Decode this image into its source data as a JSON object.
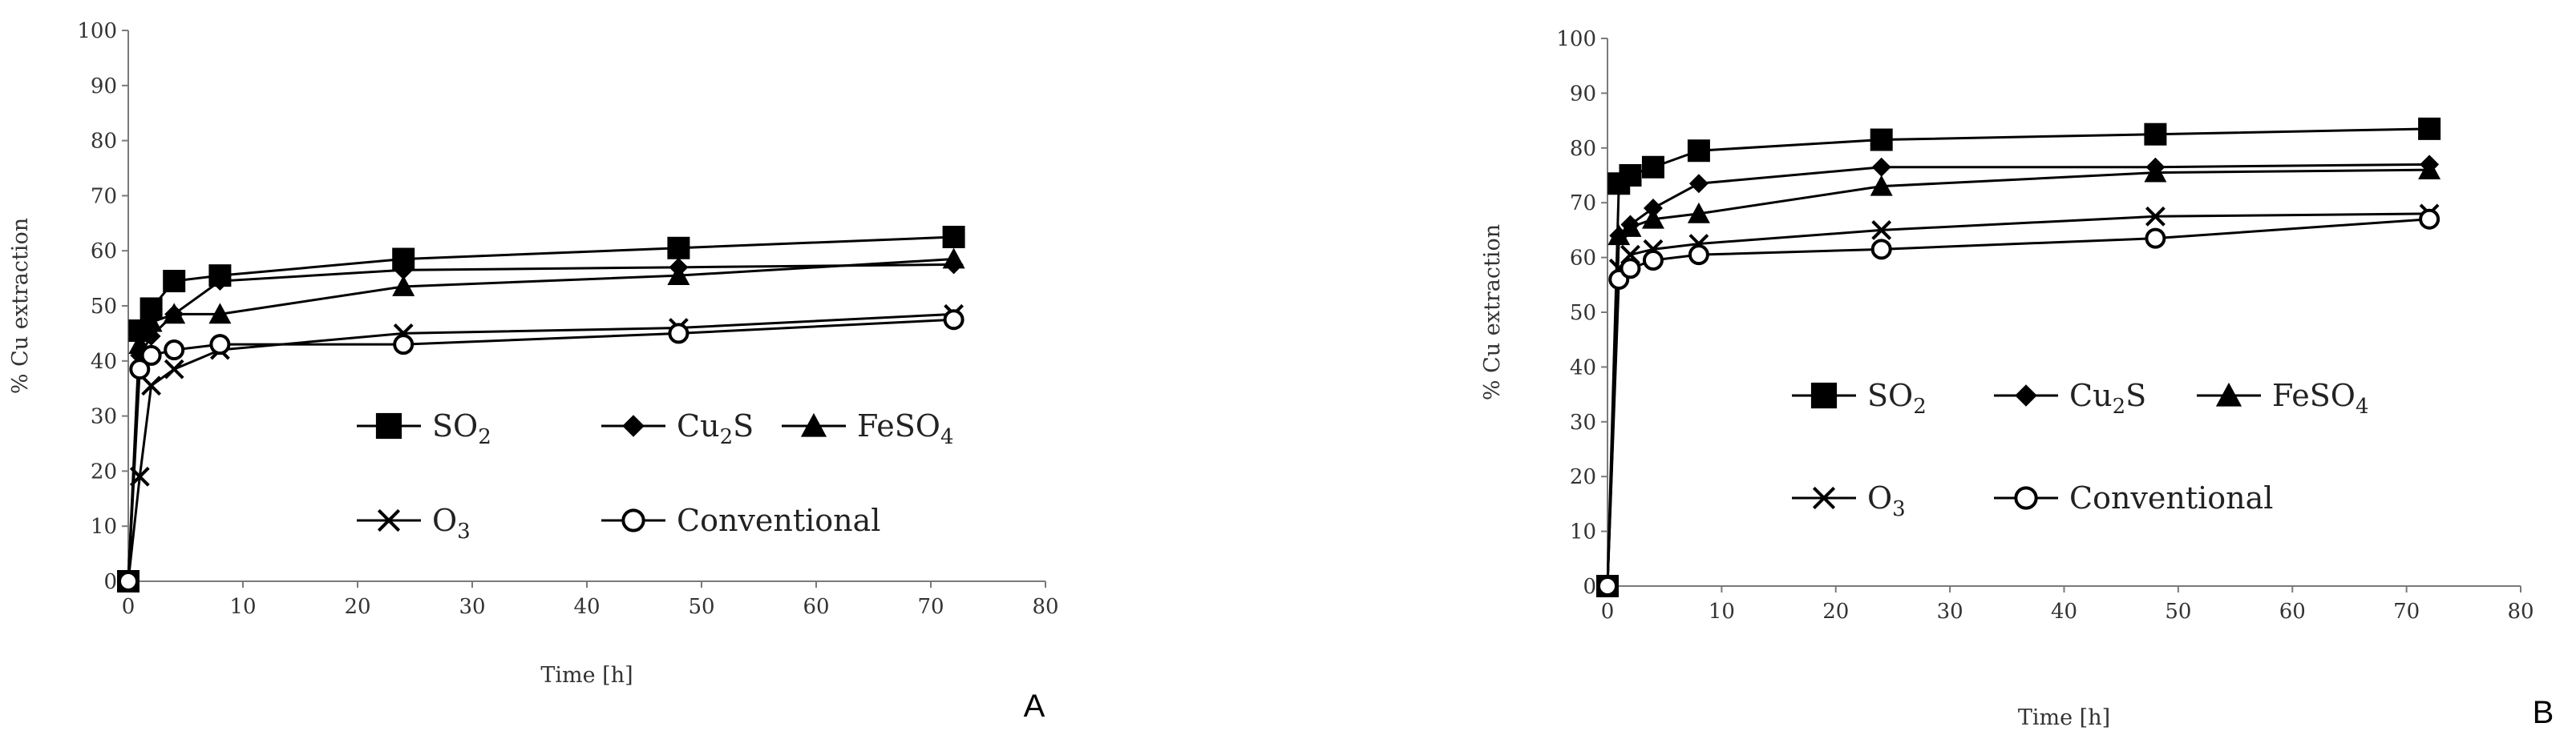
{
  "chart_data": [
    {
      "type": "line",
      "panel_label": "A",
      "xlabel": "Time [h]",
      "ylabel": "% Cu extraction",
      "xlim": [
        0,
        80
      ],
      "ylim": [
        0,
        100
      ],
      "xticks": [
        0,
        10,
        20,
        30,
        40,
        50,
        60,
        70,
        80
      ],
      "yticks": [
        0,
        10,
        20,
        30,
        40,
        50,
        60,
        70,
        80,
        90,
        100
      ],
      "grid": false,
      "legend_position": "bottom-right",
      "series": [
        {
          "name": "SO",
          "sub": "2",
          "marker": "square",
          "x": [
            0,
            1,
            2,
            4,
            8,
            24,
            48,
            72
          ],
          "y": [
            0,
            45.5,
            49.5,
            54.5,
            55.5,
            58.5,
            60.5,
            62.5
          ]
        },
        {
          "name": "Cu",
          "sub": "2",
          "tail": "S",
          "marker": "diamond",
          "x": [
            0,
            1,
            2,
            4,
            8,
            24,
            48,
            72
          ],
          "y": [
            0,
            41,
            44.5,
            48.5,
            54.5,
            56.5,
            57,
            57.5
          ]
        },
        {
          "name": "FeSO",
          "sub": "4",
          "marker": "triangle",
          "x": [
            0,
            1,
            2,
            4,
            8,
            24,
            48,
            72
          ],
          "y": [
            0,
            43,
            47,
            48.5,
            48.5,
            53.5,
            55.5,
            58.5
          ]
        },
        {
          "name": "O",
          "sub": "3",
          "marker": "x",
          "x": [
            0,
            1,
            2,
            4,
            8,
            24,
            48,
            72
          ],
          "y": [
            0,
            19,
            35.5,
            38.5,
            42,
            45,
            46,
            48.5
          ]
        },
        {
          "name": "Conventional",
          "sub": "",
          "marker": "circle",
          "x": [
            0,
            1,
            2,
            4,
            8,
            24,
            48,
            72
          ],
          "y": [
            0,
            38.5,
            41,
            42,
            43,
            43,
            45,
            47.5
          ]
        }
      ]
    },
    {
      "type": "line",
      "panel_label": "B",
      "xlabel": "Time [h]",
      "ylabel": "% Cu extraction",
      "xlim": [
        0,
        80
      ],
      "ylim": [
        0,
        100
      ],
      "xticks": [
        0,
        10,
        20,
        30,
        40,
        50,
        60,
        70,
        80
      ],
      "yticks": [
        0,
        10,
        20,
        30,
        40,
        50,
        60,
        70,
        80,
        90,
        100
      ],
      "grid": false,
      "legend_position": "bottom-right",
      "series": [
        {
          "name": "SO",
          "sub": "2",
          "marker": "square",
          "x": [
            0,
            1,
            2,
            4,
            8,
            24,
            48,
            72
          ],
          "y": [
            0,
            73.5,
            75,
            76.5,
            79.5,
            81.5,
            82.5,
            83.5
          ]
        },
        {
          "name": "Cu",
          "sub": "2",
          "tail": "S",
          "marker": "diamond",
          "x": [
            0,
            1,
            2,
            4,
            8,
            24,
            48,
            72
          ],
          "y": [
            0,
            64,
            66,
            69,
            73.5,
            76.5,
            76.5,
            77
          ]
        },
        {
          "name": "FeSO",
          "sub": "4",
          "marker": "triangle",
          "x": [
            0,
            1,
            2,
            4,
            8,
            24,
            48,
            72
          ],
          "y": [
            0,
            64,
            65.5,
            67,
            68,
            73,
            75.5,
            76
          ]
        },
        {
          "name": "O",
          "sub": "3",
          "marker": "x",
          "x": [
            0,
            1,
            2,
            4,
            8,
            24,
            48,
            72
          ],
          "y": [
            0,
            58,
            60.5,
            61.5,
            62.5,
            65,
            67.5,
            68
          ]
        },
        {
          "name": "Conventional",
          "sub": "",
          "marker": "circle",
          "x": [
            0,
            1,
            2,
            4,
            8,
            24,
            48,
            72
          ],
          "y": [
            0,
            56,
            58,
            59.5,
            60.5,
            61.5,
            63.5,
            67
          ]
        }
      ]
    }
  ]
}
